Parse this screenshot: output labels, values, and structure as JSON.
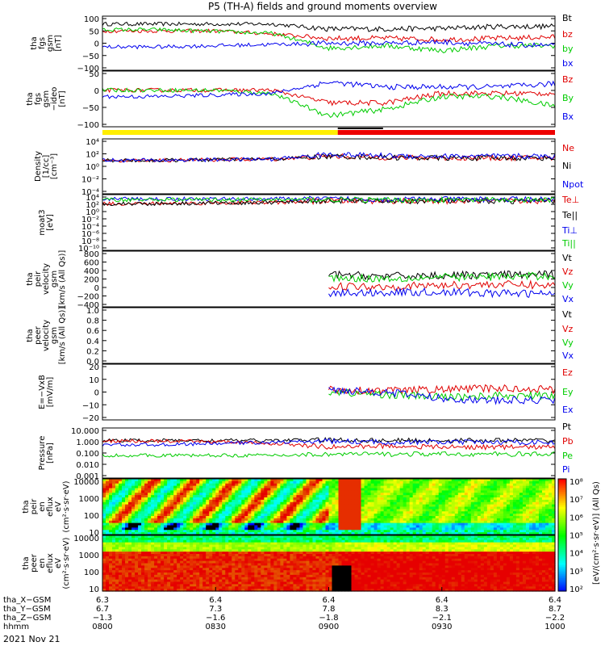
{
  "title": "P5 (TH-A) fields and ground moments overview",
  "date_label": "2021 Nov 21",
  "colors": {
    "black": "#000000",
    "red": "#e00000",
    "green": "#00cc00",
    "blue": "#0000ee",
    "yellow": "#ffee00",
    "mode_red": "#ee0000"
  },
  "chart_data": [
    {
      "type": "line",
      "ylabel": [
        "tha",
        "fgs",
        "gsm",
        "[nT]"
      ],
      "yticks": [
        "100",
        "50",
        "0",
        "−50",
        "−100"
      ],
      "ylim": [
        -110,
        110
      ],
      "series": [
        {
          "name": "Bt",
          "color": "black"
        },
        {
          "name": "bz",
          "color": "red"
        },
        {
          "name": "by",
          "color": "green"
        },
        {
          "name": "bx",
          "color": "blue"
        }
      ],
      "levels": {
        "Bt": [
          78,
          78,
          78,
          78,
          58,
          58,
          60,
          68,
          68
        ],
        "bz": [
          50,
          50,
          50,
          38,
          20,
          20,
          15,
          20,
          25
        ],
        "by": [
          55,
          55,
          48,
          40,
          -20,
          -10,
          -30,
          -10,
          -10
        ],
        "bx": [
          -15,
          -15,
          -10,
          -5,
          0,
          0,
          5,
          -5,
          -10
        ]
      }
    },
    {
      "type": "line",
      "ylabel": [
        "tha",
        "fgs",
        "gsm",
        "−ideo",
        "[nT]"
      ],
      "yticks": [
        "50",
        "0",
        "−50",
        "−100"
      ],
      "ylim": [
        -115,
        60
      ],
      "series": [
        {
          "name": "Bz",
          "color": "red"
        },
        {
          "name": "By",
          "color": "green"
        },
        {
          "name": "Bx",
          "color": "blue"
        }
      ],
      "levels": {
        "Bz": [
          0,
          0,
          0,
          0,
          -40,
          -40,
          -10,
          -10,
          -10
        ],
        "By": [
          0,
          0,
          0,
          -10,
          -80,
          -60,
          -20,
          -20,
          -50
        ],
        "Bx": [
          -20,
          -20,
          -15,
          -10,
          25,
          10,
          10,
          10,
          20
        ]
      }
    },
    {
      "type": "line",
      "ylabel": [
        "Density",
        "[1/cc]",
        "[cm⁻³]"
      ],
      "yticks": [
        "10⁴",
        "10²",
        "10⁰",
        "10⁻²",
        "10⁻⁴"
      ],
      "ylim": [
        -5,
        4.5
      ],
      "scale": "log",
      "series": [
        {
          "name": "Ne",
          "color": "red"
        },
        {
          "name": "Ni",
          "color": "black"
        },
        {
          "name": "Npot",
          "color": "blue"
        }
      ],
      "levels": {
        "Ne": [
          0.8,
          0.8,
          0.9,
          1.0,
          1.5,
          1.3,
          1.2,
          1.2,
          1.2
        ],
        "Ni": [
          0.8,
          0.8,
          0.9,
          1.0,
          1.5,
          1.3,
          1.2,
          1.2,
          1.2
        ],
        "Npot": [
          0.8,
          0.8,
          0.9,
          1.0,
          1.8,
          1.6,
          1.5,
          1.5,
          1.5
        ]
      }
    },
    {
      "type": "line",
      "ylabel": [
        "moat3",
        "[eV]"
      ],
      "yticks": [
        "10⁴",
        "10²",
        "10⁰",
        "10⁻²",
        "10⁻⁴",
        "10⁻⁶",
        "10⁻⁸",
        "10⁻¹⁰"
      ],
      "ylim": [
        -11,
        4.5
      ],
      "scale": "log",
      "series": [
        {
          "name": "Te⊥",
          "color": "red"
        },
        {
          "name": "Te||",
          "color": "black"
        },
        {
          "name": "Ti⊥",
          "color": "blue"
        },
        {
          "name": "Ti||",
          "color": "green"
        }
      ],
      "levels": {
        "Te⊥": [
          2,
          2,
          2.2,
          2.3,
          2.8,
          2.7,
          2.7,
          2.7,
          2.7
        ],
        "Te||": [
          2,
          2,
          2.2,
          2.3,
          2.8,
          2.7,
          2.7,
          2.7,
          2.7
        ],
        "Ti⊥": [
          3.3,
          3.3,
          3.3,
          3.3,
          3.3,
          3.2,
          3.2,
          3.2,
          3.2
        ],
        "Ti||": [
          3.1,
          3.1,
          3.1,
          3.1,
          3.1,
          3.0,
          3.0,
          3.0,
          3.0
        ]
      }
    },
    {
      "type": "line",
      "ylabel": [
        "tha",
        "peir",
        "velocity",
        "gsm",
        "[km/s (All Qs)]"
      ],
      "yticks": [
        "800",
        "600",
        "400",
        "200",
        "0",
        "−200",
        "−400"
      ],
      "ylim": [
        -420,
        820
      ],
      "series": [
        {
          "name": "Vt",
          "color": "black"
        },
        {
          "name": "Vz",
          "color": "red"
        },
        {
          "name": "Vy",
          "color": "green"
        },
        {
          "name": "Vx",
          "color": "blue"
        }
      ],
      "levels": {
        "Vt": [
          null,
          null,
          null,
          null,
          300,
          260,
          280,
          290,
          300
        ],
        "Vz": [
          null,
          null,
          null,
          null,
          40,
          30,
          60,
          80,
          60
        ],
        "Vy": [
          null,
          null,
          null,
          null,
          230,
          210,
          240,
          250,
          270
        ],
        "Vx": [
          null,
          null,
          null,
          null,
          -120,
          -100,
          -90,
          -120,
          -130
        ]
      }
    },
    {
      "type": "line",
      "ylabel": [
        "tha",
        "peer",
        "velocity",
        "gsm",
        "[km/s (All Qs)]"
      ],
      "yticks": [
        "1.0",
        "0.8",
        "0.6",
        "0.4",
        "0.2",
        "0.0"
      ],
      "ylim": [
        0,
        1
      ],
      "series": [
        {
          "name": "Vt",
          "color": "black"
        },
        {
          "name": "Vz",
          "color": "red"
        },
        {
          "name": "Vy",
          "color": "green"
        },
        {
          "name": "Vx",
          "color": "blue"
        }
      ],
      "levels": {}
    },
    {
      "type": "line",
      "ylabel": [
        "E=−VxB",
        "[mV/m]"
      ],
      "yticks": [
        "20",
        "10",
        "0",
        "−10",
        "−20"
      ],
      "ylim": [
        -22,
        22
      ],
      "series": [
        {
          "name": "Ez",
          "color": "red"
        },
        {
          "name": "Ey",
          "color": "green"
        },
        {
          "name": "Ex",
          "color": "blue"
        }
      ],
      "levels": {
        "Ez": [
          null,
          null,
          null,
          null,
          2,
          1,
          2,
          3,
          2
        ],
        "Ey": [
          null,
          null,
          null,
          null,
          0,
          -2,
          -4,
          -3,
          -3
        ],
        "Ex": [
          null,
          null,
          null,
          null,
          2,
          0,
          -5,
          -7,
          -6
        ]
      }
    },
    {
      "type": "line",
      "ylabel": [
        "Pressure",
        "[nPa]"
      ],
      "yticks": [
        "10.000",
        "1.000",
        "0.100",
        "0.010",
        "0.001"
      ],
      "ylim": [
        -3.1,
        1.1
      ],
      "scale": "log",
      "series": [
        {
          "name": "Pt",
          "color": "black"
        },
        {
          "name": "Pb",
          "color": "red"
        },
        {
          "name": "Pe",
          "color": "green"
        },
        {
          "name": "Pi",
          "color": "blue"
        }
      ],
      "levels": {
        "Pt": [
          0.05,
          0.05,
          0.05,
          0.05,
          0.1,
          0.05,
          0.05,
          0.05,
          0.05
        ],
        "Pb": [
          0,
          0,
          -0.05,
          -0.2,
          -0.5,
          -0.4,
          -0.5,
          -0.5,
          -0.5
        ],
        "Pe": [
          -1.2,
          -1.2,
          -1.2,
          -1.2,
          -1.1,
          -1.1,
          -1.1,
          -1.1,
          -1.1
        ],
        "Pi": [
          -0.3,
          -0.3,
          -0.2,
          -0.1,
          0.0,
          -0.1,
          -0.1,
          -0.1,
          -0.1
        ]
      }
    },
    {
      "type": "heatmap",
      "ylabel": [
        "tha",
        "peir",
        "en",
        "eflux",
        "eV",
        "(cm²·s·sr·eV)"
      ],
      "yticks": [
        "10000",
        "1000",
        "100",
        "10"
      ]
    },
    {
      "type": "heatmap",
      "ylabel": [
        "tha",
        "peer",
        "en",
        "eflux",
        "eV",
        "(cm²·s·sr·eV)"
      ],
      "yticks": [
        "10000",
        "1000",
        "100",
        "10"
      ]
    }
  ],
  "colorbar": {
    "ticks": [
      "10⁸",
      "10⁷",
      "10⁶",
      "10⁵",
      "10⁴",
      "10³",
      "10²"
    ],
    "label": "[eV/(cm²·s·sr·eV)] (All Qs)"
  },
  "xaxis": {
    "rows": [
      {
        "label": "tha_X−GSM",
        "values": [
          "6.3",
          "6.4",
          "6.4",
          "6.4",
          "6.4"
        ]
      },
      {
        "label": "tha_Y−GSM",
        "values": [
          "6.7",
          "7.3",
          "7.8",
          "8.3",
          "8.7"
        ]
      },
      {
        "label": "tha_Z−GSM",
        "values": [
          "−1.3",
          "−1.6",
          "−1.8",
          "−2.1",
          "−2.2"
        ]
      },
      {
        "label": "hhmm",
        "values": [
          "0800",
          "0830",
          "0900",
          "0930",
          "1000"
        ]
      }
    ]
  }
}
